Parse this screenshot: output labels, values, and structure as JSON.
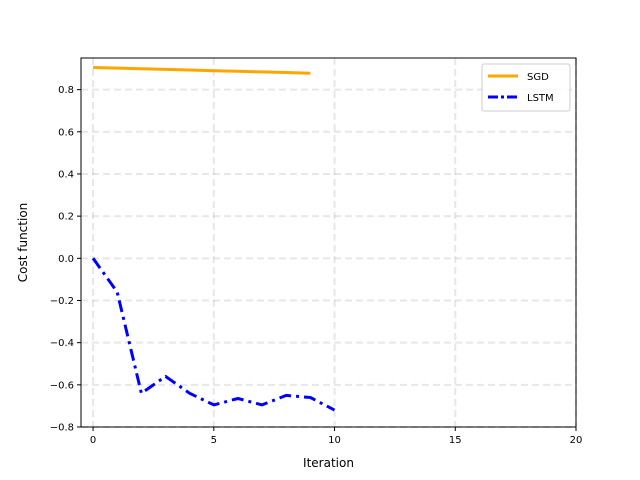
{
  "chart_data": {
    "type": "line",
    "title": "",
    "xlabel": "Iteration",
    "ylabel": "Cost function",
    "xlim": [
      -0.5,
      20
    ],
    "ylim": [
      -0.8,
      0.95
    ],
    "xticks": [
      0,
      5,
      10,
      15,
      20
    ],
    "yticks": [
      -0.8,
      -0.6,
      -0.4,
      -0.2,
      0.0,
      0.2,
      0.4,
      0.6,
      0.8
    ],
    "xtick_labels": [
      "0",
      "5",
      "10",
      "15",
      "20"
    ],
    "ytick_labels": [
      "−0.8",
      "−0.6",
      "−0.4",
      "−0.2",
      "0.0",
      "0.2",
      "0.4",
      "0.6",
      "0.8"
    ],
    "grid": true,
    "legend_position": "top-right",
    "series": [
      {
        "name": "SGD",
        "color": "#ffa500",
        "style": "solid",
        "x": [
          0,
          1,
          2,
          3,
          4,
          5,
          6,
          7,
          8,
          9
        ],
        "y": [
          0.905,
          0.902,
          0.899,
          0.896,
          0.893,
          0.89,
          0.887,
          0.884,
          0.881,
          0.878
        ]
      },
      {
        "name": "LSTM",
        "color": "#0000ff",
        "style": "dashdot",
        "x": [
          0,
          1,
          2,
          3,
          4,
          5,
          6,
          7,
          8,
          9,
          10
        ],
        "y": [
          0.0,
          -0.16,
          -0.64,
          -0.56,
          -0.64,
          -0.695,
          -0.665,
          -0.695,
          -0.65,
          -0.66,
          -0.72
        ]
      }
    ]
  }
}
